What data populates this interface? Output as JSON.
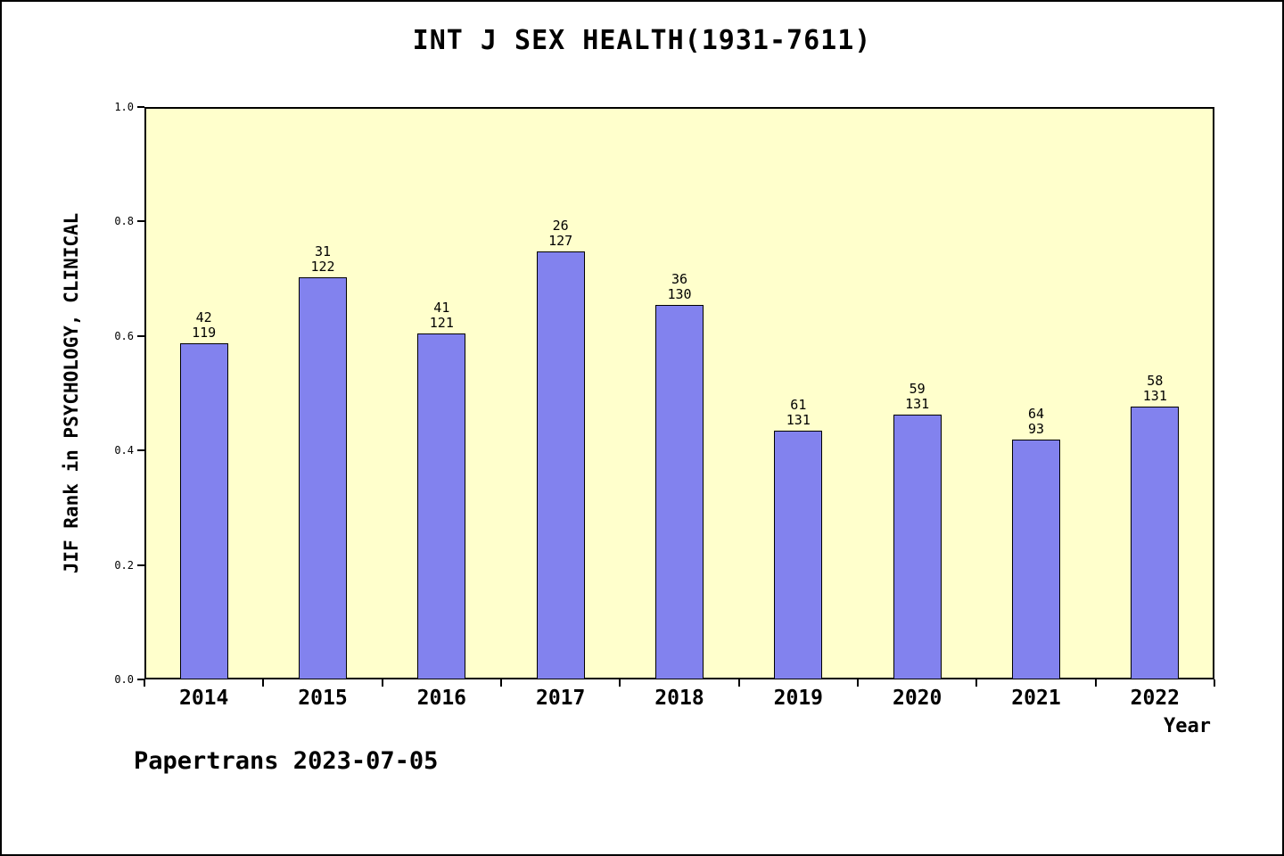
{
  "footer": {
    "text": "Papertrans 2023-07-05"
  },
  "chart_data": {
    "type": "bar",
    "title": "INT J SEX HEALTH(1931-7611)",
    "xlabel": "Year",
    "ylabel": "JIF Rank in PSYCHOLOGY, CLINICAL",
    "ylim": [
      0.0,
      1.0
    ],
    "yticks": [
      0.0,
      0.2,
      0.4,
      0.6,
      0.8,
      1.0
    ],
    "grid": false,
    "legend_position": "none",
    "plot_background": "#ffffcc",
    "bar_color": "#8282ee",
    "categories": [
      "2014",
      "2015",
      "2016",
      "2017",
      "2018",
      "2019",
      "2020",
      "2021",
      "2022"
    ],
    "values": [
      0.587,
      0.703,
      0.605,
      0.747,
      0.654,
      0.435,
      0.463,
      0.419,
      0.477
    ],
    "bar_labels": [
      {
        "rank": "42",
        "total": "119"
      },
      {
        "rank": "31",
        "total": "122"
      },
      {
        "rank": "41",
        "total": "121"
      },
      {
        "rank": "26",
        "total": "127"
      },
      {
        "rank": "36",
        "total": "130"
      },
      {
        "rank": "61",
        "total": "131"
      },
      {
        "rank": "59",
        "total": "131"
      },
      {
        "rank": "64",
        "total": "93"
      },
      {
        "rank": "58",
        "total": "131"
      }
    ]
  }
}
